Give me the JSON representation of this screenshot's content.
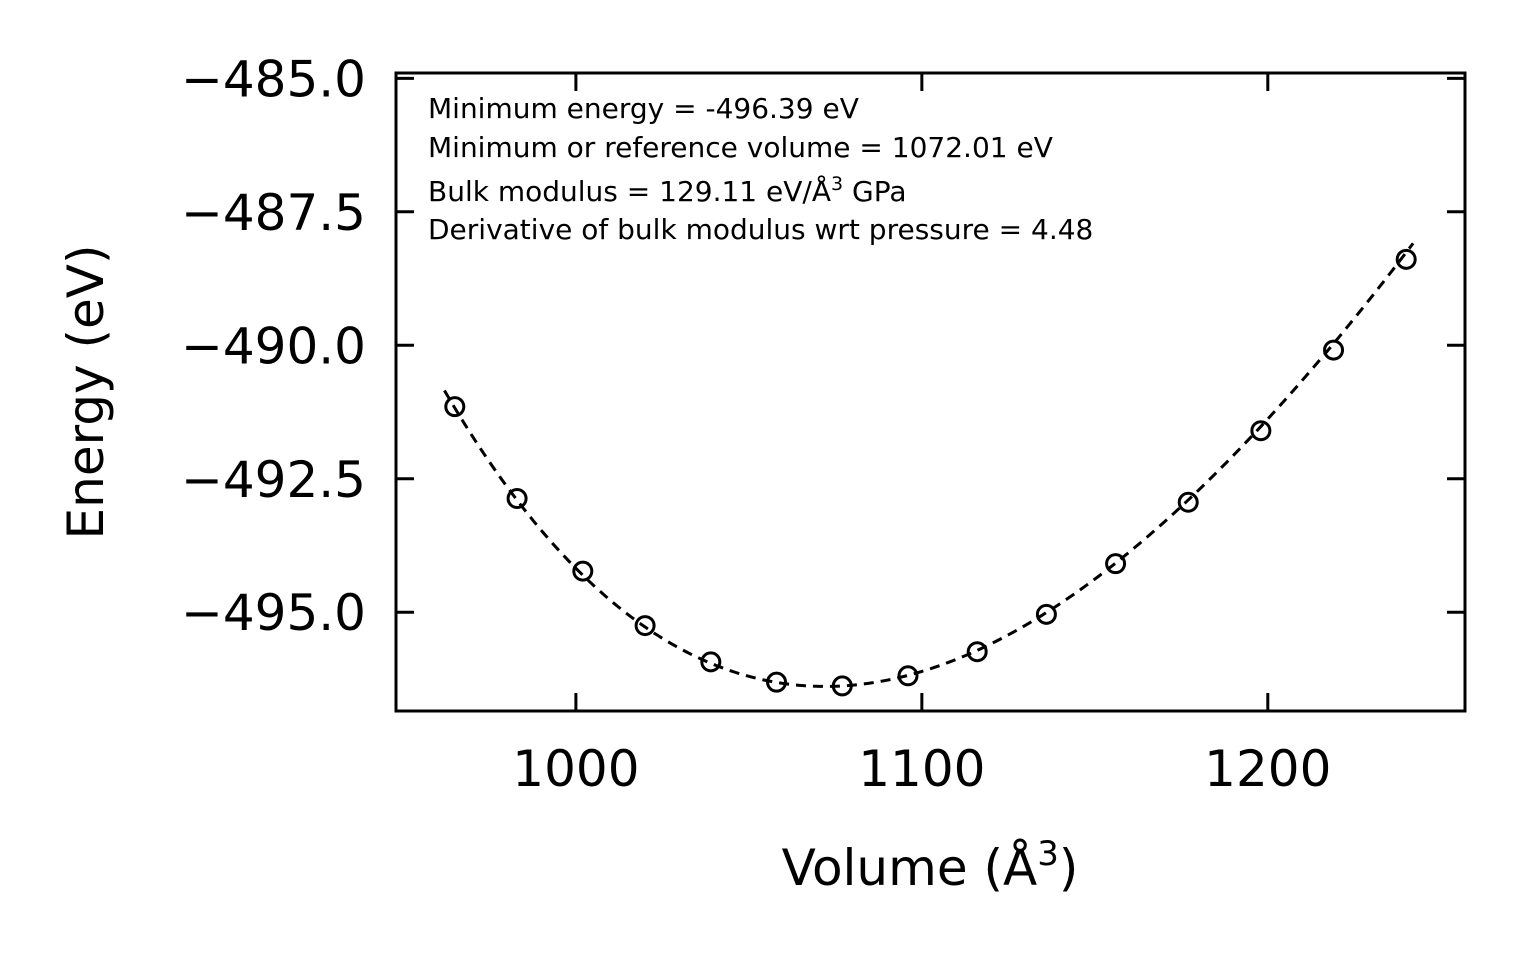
{
  "chart_data": {
    "type": "scatter",
    "title": "",
    "xlabel": "Volume (Å³)",
    "xlabel_main": "Volume (Å",
    "xlabel_sup": "3",
    "xlabel_close": ")",
    "ylabel": "Energy (eV)",
    "xlim": [
      948,
      1257
    ],
    "ylim": [
      -496.85,
      -484.9
    ],
    "xticks": [
      1000,
      1100,
      1200
    ],
    "xtick_labels": [
      "1000",
      "1100",
      "1200"
    ],
    "yticks": [
      -485.0,
      -487.5,
      -490.0,
      -492.5,
      -495.0
    ],
    "ytick_labels": [
      "−485.0",
      "−487.5",
      "−490.0",
      "−492.5",
      "−495.0"
    ],
    "grid": false,
    "series": [
      {
        "name": "data",
        "marker": "open-circle",
        "x": [
          965,
          983,
          1002,
          1020,
          1039,
          1058,
          1077,
          1096,
          1116,
          1136,
          1156,
          1177,
          1198,
          1219,
          1240
        ],
        "y": [
          -491.15,
          -492.87,
          -494.23,
          -495.25,
          -495.93,
          -496.31,
          -496.38,
          -496.19,
          -495.74,
          -495.04,
          -494.09,
          -492.94,
          -491.6,
          -490.09,
          -488.39
        ]
      },
      {
        "name": "fit",
        "style": "dashed-line",
        "model": "birch-murnaghan",
        "E0": -496.39,
        "V0": 1072.01,
        "B0_gpa": 129.11,
        "B0_prime": 4.48,
        "x_range": [
          962,
          1242
        ]
      }
    ],
    "annotations": [
      "Minimum energy = -496.39 eV",
      "Minimum or reference volume = 1072.01 eV",
      "Bulk modulus = 129.11 eV/Å³ GPa",
      "Derivative of bulk modulus wrt pressure = 4.48"
    ],
    "annotation_parts": {
      "bulk_prefix": "Bulk modulus = 129.11 eV/Å",
      "bulk_sup": "3",
      "bulk_suffix": " GPa"
    }
  }
}
